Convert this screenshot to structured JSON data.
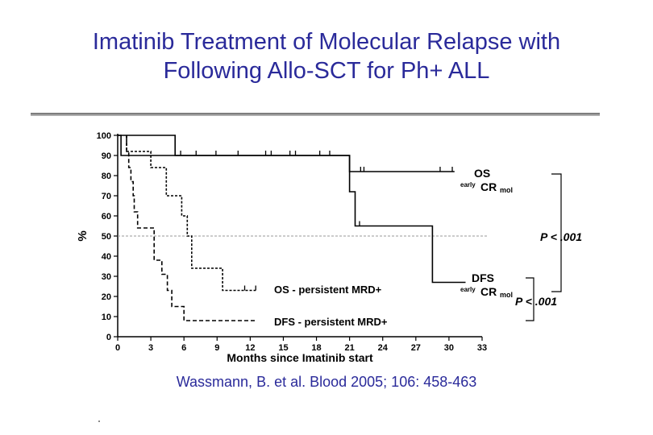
{
  "title_line1": "Imatinib Treatment of Molecular Relapse with",
  "title_line2": "Following Allo-SCT for Ph+ ALL",
  "citation": "Wassmann, B. et al. Blood 2005; 106: 458-463",
  "chart_data": {
    "type": "line",
    "step": true,
    "xlabel": "Months since Imatinib start",
    "ylabel": "%",
    "xlim": [
      0,
      33
    ],
    "ylim": [
      0,
      100
    ],
    "x_ticks": [
      0,
      3,
      6,
      9,
      12,
      15,
      18,
      21,
      24,
      27,
      30,
      33
    ],
    "y_ticks": [
      0,
      10,
      20,
      30,
      40,
      50,
      60,
      70,
      80,
      90,
      100
    ],
    "reference_line_y": 50,
    "series": [
      {
        "label_main": "OS",
        "label_sup": "early",
        "label_main2": "CR",
        "label_sub": "mol",
        "dash": "solid",
        "points": [
          [
            0,
            100
          ],
          [
            0.3,
            100
          ],
          [
            0.3,
            90
          ],
          [
            21,
            90
          ],
          [
            21,
            82
          ],
          [
            30.5,
            82
          ]
        ],
        "censor_x": [
          5.2,
          5.7,
          7.1,
          8.9,
          10.9,
          13.4,
          13.9,
          15.6,
          16.1,
          18.3,
          19.2,
          22,
          22.3,
          29.2,
          30.3
        ]
      },
      {
        "label_main": "DFS",
        "label_sup": "early",
        "label_main2": "CR",
        "label_sub": "mol",
        "dash": "solid",
        "points": [
          [
            0,
            100
          ],
          [
            5.2,
            100
          ],
          [
            5.2,
            90
          ],
          [
            21,
            90
          ],
          [
            21,
            72
          ],
          [
            21.5,
            72
          ],
          [
            21.5,
            55
          ],
          [
            28.5,
            55
          ],
          [
            28.5,
            27
          ],
          [
            31.5,
            27
          ]
        ],
        "censor_x": [
          21.9
        ]
      },
      {
        "label": "OS - persistent MRD+",
        "dash": "dashed",
        "points": [
          [
            0.8,
            100
          ],
          [
            0.8,
            92
          ],
          [
            3,
            92
          ],
          [
            3,
            84
          ],
          [
            4.4,
            84
          ],
          [
            4.4,
            70
          ],
          [
            5.8,
            70
          ],
          [
            5.8,
            60
          ],
          [
            6.3,
            60
          ],
          [
            6.3,
            50
          ],
          [
            6.7,
            50
          ],
          [
            6.7,
            34
          ],
          [
            9.5,
            34
          ],
          [
            9.5,
            23
          ],
          [
            12.5,
            23
          ]
        ],
        "censor_x": [
          11.5,
          12.5
        ]
      },
      {
        "label": "DFS - persistent MRD+",
        "dash": "dashed",
        "points": [
          [
            0.8,
            100
          ],
          [
            0.8,
            92
          ],
          [
            1,
            92
          ],
          [
            1,
            84
          ],
          [
            1.2,
            84
          ],
          [
            1.2,
            77
          ],
          [
            1.4,
            77
          ],
          [
            1.4,
            70
          ],
          [
            1.5,
            70
          ],
          [
            1.5,
            62
          ],
          [
            1.8,
            62
          ],
          [
            1.8,
            54
          ],
          [
            3.3,
            54
          ],
          [
            3.3,
            38
          ],
          [
            4,
            38
          ],
          [
            4,
            31
          ],
          [
            4.5,
            31
          ],
          [
            4.5,
            23
          ],
          [
            4.9,
            23
          ],
          [
            4.9,
            15
          ],
          [
            6,
            15
          ],
          [
            6,
            8
          ],
          [
            12.5,
            8
          ]
        ],
        "censor_x": []
      }
    ],
    "p_values": [
      "P < .001",
      "P < .001"
    ]
  }
}
